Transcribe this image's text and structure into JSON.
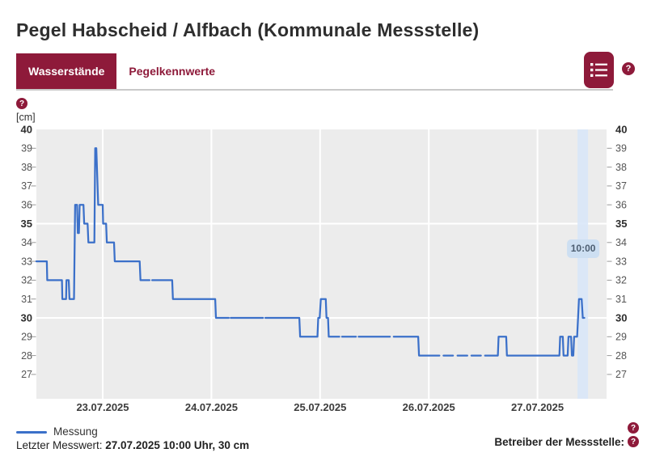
{
  "header": {
    "title": "Pegel Habscheid / Alfbach (Kommunale Messstelle)"
  },
  "tabs": [
    {
      "label": "Wasserstände",
      "active": true
    },
    {
      "label": "Pegelkennwerte",
      "active": false
    }
  ],
  "toolbar": {
    "list_button_icon": "list-icon",
    "help_icon_glyph": "?"
  },
  "chart": {
    "unit_label": "[cm]",
    "help_icon_glyph": "?"
  },
  "legend": {
    "label": "Messung"
  },
  "footer": {
    "last_value_label": "Letzter Messwert: ",
    "last_value": "27.07.2025 10:00 Uhr, 30 cm",
    "operator_label": "Betreiber der Messstelle:",
    "help_icon_glyph": "?"
  },
  "colors": {
    "accent_maroon": "#8e1a3a",
    "line_blue": "#3b70c9",
    "plot_background": "#ececec",
    "gridline": "#ffffff",
    "axis_text": "#555555",
    "axis_text_bold": "#2e2e2e",
    "date_text": "#3c3c3c",
    "time_band": "#d9e7f8",
    "time_pill_bg": "#cddff2",
    "time_pill_text": "#4d5e71"
  },
  "chart_data": {
    "type": "line",
    "title": "",
    "xlabel": "",
    "ylabel": "[cm]",
    "grid": true,
    "legend_position": "bottom-left",
    "x_tick_labels": [
      "23.07.2025",
      "24.07.2025",
      "25.07.2025",
      "26.07.2025",
      "27.07.2025"
    ],
    "y_ticks": [
      27,
      28,
      29,
      30,
      31,
      32,
      33,
      34,
      35,
      36,
      37,
      38,
      39,
      40
    ],
    "y_bold_ticks": [
      30,
      35,
      40
    ],
    "ylim": [
      25.7,
      40
    ],
    "x_range": [
      "22.07 09:20",
      "27.07 15:15"
    ],
    "current_time_marker": {
      "time": "27.07 10:00",
      "label": "10:00"
    },
    "series": [
      {
        "name": "Messung",
        "unit": "cm",
        "segments": [
          [
            [
              "22.07 09:20",
              33
            ],
            [
              "22.07 11:40",
              33
            ],
            [
              "22.07 11:45",
              32
            ],
            [
              "22.07 15:00",
              32
            ],
            [
              "22.07 15:05",
              31
            ],
            [
              "22.07 15:55",
              31
            ],
            [
              "22.07 16:00",
              32
            ],
            [
              "22.07 16:30",
              32
            ],
            [
              "22.07 16:40",
              31
            ],
            [
              "22.07 17:40",
              31
            ],
            [
              "22.07 17:55",
              36
            ],
            [
              "22.07 18:20",
              36
            ],
            [
              "22.07 18:30",
              34.5
            ],
            [
              "22.07 18:45",
              34.5
            ],
            [
              "22.07 18:55",
              36
            ],
            [
              "22.07 19:45",
              36
            ],
            [
              "22.07 19:55",
              35
            ],
            [
              "22.07 20:40",
              35
            ],
            [
              "22.07 20:50",
              34
            ],
            [
              "22.07 22:10",
              34
            ],
            [
              "22.07 22:20",
              39
            ],
            [
              "22.07 22:35",
              39
            ],
            [
              "22.07 23:00",
              36
            ],
            [
              "23.07 00:00",
              36
            ],
            [
              "23.07 00:05",
              35
            ],
            [
              "23.07 00:45",
              35
            ],
            [
              "23.07 00:55",
              34
            ],
            [
              "23.07 02:30",
              34
            ],
            [
              "23.07 02:40",
              33
            ],
            [
              "23.07 08:10",
              33
            ],
            [
              "23.07 08:20",
              32
            ],
            [
              "23.07 10:20",
              32
            ]
          ],
          [
            [
              "23.07 10:55",
              32
            ],
            [
              "23.07 15:20",
              32
            ],
            [
              "23.07 15:30",
              31
            ],
            [
              "24.07 00:50",
              31
            ],
            [
              "24.07 01:00",
              30
            ],
            [
              "24.07 03:50",
              30
            ]
          ],
          [
            [
              "24.07 04:15",
              30
            ],
            [
              "24.07 11:25",
              30
            ]
          ],
          [
            [
              "24.07 11:55",
              30
            ],
            [
              "24.07 19:25",
              30
            ],
            [
              "24.07 19:35",
              29
            ],
            [
              "24.07 23:25",
              29
            ],
            [
              "24.07 23:35",
              30
            ],
            [
              "24.07 23:55",
              30
            ],
            [
              "25.07 00:10",
              31
            ],
            [
              "25.07 01:15",
              31
            ],
            [
              "25.07 01:25",
              30
            ],
            [
              "25.07 01:45",
              30
            ],
            [
              "25.07 01:55",
              29
            ],
            [
              "25.07 04:15",
              29
            ]
          ],
          [
            [
              "25.07 04:50",
              29
            ],
            [
              "25.07 07:55",
              29
            ]
          ],
          [
            [
              "25.07 08:30",
              29
            ],
            [
              "25.07 15:25",
              29
            ]
          ],
          [
            [
              "25.07 16:15",
              29
            ],
            [
              "25.07 21:40",
              29
            ],
            [
              "25.07 21:50",
              28
            ],
            [
              "26.07 02:20",
              28
            ]
          ],
          [
            [
              "26.07 03:15",
              28
            ],
            [
              "26.07 05:20",
              28
            ]
          ],
          [
            [
              "26.07 06:20",
              28
            ],
            [
              "26.07 08:30",
              28
            ]
          ],
          [
            [
              "26.07 09:25",
              28
            ],
            [
              "26.07 11:30",
              28
            ]
          ],
          [
            [
              "26.07 12:25",
              28
            ],
            [
              "26.07 15:15",
              28
            ],
            [
              "26.07 15:25",
              29
            ],
            [
              "26.07 17:05",
              29
            ],
            [
              "26.07 17:15",
              28
            ],
            [
              "27.07 04:50",
              28
            ],
            [
              "27.07 05:00",
              29
            ],
            [
              "27.07 05:35",
              29
            ],
            [
              "27.07 05:45",
              28
            ],
            [
              "27.07 06:40",
              28
            ],
            [
              "27.07 06:50",
              29
            ],
            [
              "27.07 07:25",
              29
            ],
            [
              "27.07 07:35",
              28
            ],
            [
              "27.07 07:55",
              28
            ],
            [
              "27.07 08:05",
              29
            ],
            [
              "27.07 08:45",
              29
            ],
            [
              "27.07 09:10",
              31
            ],
            [
              "27.07 09:45",
              31
            ],
            [
              "27.07 10:00",
              30
            ],
            [
              "27.07 10:20",
              30
            ]
          ]
        ]
      }
    ]
  }
}
